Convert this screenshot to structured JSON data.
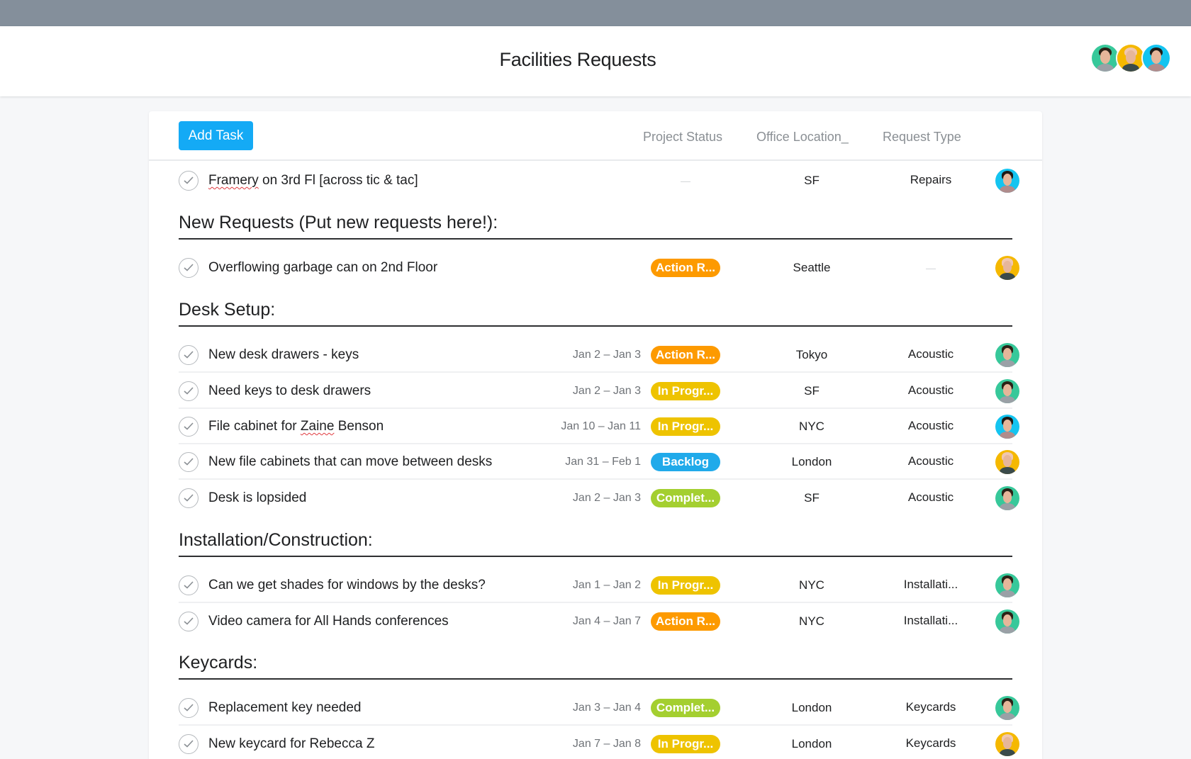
{
  "header": {
    "title": "Facilities Requests",
    "members": [
      {
        "name": "member-1",
        "color": "#37c89a",
        "hair": "#2b2217",
        "body": "#9aa0a6"
      },
      {
        "name": "member-2",
        "color": "#f5b800",
        "hair": "#f0c7b0",
        "body": "#3a4a4a"
      },
      {
        "name": "member-3",
        "color": "#14c4f0",
        "hair": "#1f1b18",
        "body": "#b08c8c"
      }
    ]
  },
  "toolbar": {
    "add_task_label": "Add Task",
    "columns": {
      "status": "Project Status",
      "location": "Office Location_",
      "type": "Request Type"
    }
  },
  "colors": {
    "accent": "#14aaf5",
    "action_required": "#fd9a00",
    "in_progress": "#eec300",
    "backlog": "#20aaea",
    "complete": "#a4cf30"
  },
  "unsectioned": {
    "tasks": [
      {
        "name_pre": "",
        "name_spell": "Framery",
        "name_post": " on 3rd Fl [across tic & tac]",
        "date": "",
        "status": "",
        "location": "SF",
        "type": "Repairs",
        "assignee": "member-3"
      }
    ]
  },
  "sections": [
    {
      "title": "New Requests (Put new requests here!):",
      "tasks": [
        {
          "name": "Overflowing garbage can on 2nd Floor",
          "date": "",
          "status": "Action R...",
          "location": "Seattle",
          "type": "",
          "assignee": "member-2"
        }
      ]
    },
    {
      "title": "Desk Setup:",
      "tasks": [
        {
          "name": "New desk drawers - keys",
          "date": "Jan 2 – Jan 3",
          "status": "Action R...",
          "location": "Tokyo",
          "type": "Acoustic",
          "assignee": "member-1"
        },
        {
          "name": "Need keys to desk drawers",
          "date": "Jan 2 – Jan 3",
          "status": "In Progr...",
          "location": "SF",
          "type": "Acoustic",
          "assignee": "member-1"
        },
        {
          "name_pre": "File cabinet for ",
          "name_spell": "Zaine",
          "name_post": " Benson",
          "date": "Jan 10 – Jan 11",
          "status": "In Progr...",
          "location": "NYC",
          "type": "Acoustic",
          "assignee": "member-3"
        },
        {
          "name": "New file cabinets that can move between desks",
          "date": "Jan 31 – Feb 1",
          "status": "Backlog",
          "location": "London",
          "type": "Acoustic",
          "assignee": "member-2"
        },
        {
          "name": "Desk is lopsided",
          "date": "Jan 2 – Jan 3",
          "status": "Complet...",
          "location": "SF",
          "type": "Acoustic",
          "assignee": "member-1"
        }
      ]
    },
    {
      "title": "Installation/Construction:",
      "tasks": [
        {
          "name": "Can we get shades for windows by the desks?",
          "date": "Jan 1 – Jan 2",
          "status": "In Progr...",
          "location": "NYC",
          "type": "Installati...",
          "assignee": "member-1"
        },
        {
          "name": "Video camera for All Hands conferences",
          "date": "Jan 4 – Jan 7",
          "status": "Action R...",
          "location": "NYC",
          "type": "Installati...",
          "assignee": "member-1"
        }
      ]
    },
    {
      "title": "Keycards:",
      "tasks": [
        {
          "name": "Replacement key needed",
          "date": "Jan 3 – Jan 4",
          "status": "Complet...",
          "location": "London",
          "type": "Keycards",
          "assignee": "member-1"
        },
        {
          "name": "New keycard for Rebecca Z",
          "date": "Jan 7 – Jan 8",
          "status": "In Progr...",
          "location": "London",
          "type": "Keycards",
          "assignee": "member-2"
        }
      ]
    }
  ]
}
